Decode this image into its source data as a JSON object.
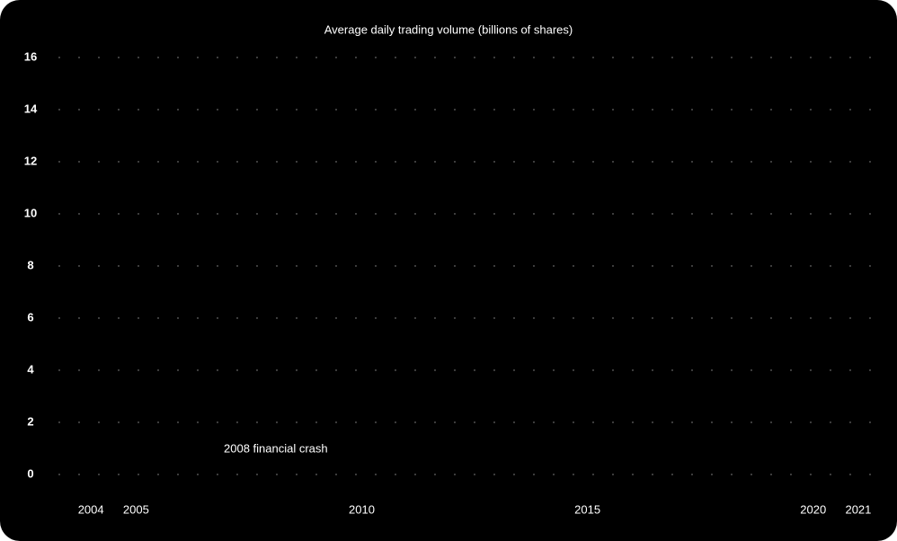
{
  "chart_data": {
    "type": "line",
    "title": "Average daily trading volume (billions of shares)",
    "annotation": "2008 financial crash",
    "xlim": [
      2003.3,
      2021.3
    ],
    "xticks": [
      2004,
      2005,
      2010,
      2015,
      2020,
      2021
    ],
    "ylim": [
      0,
      16
    ],
    "yticks": [
      0,
      2,
      4,
      6,
      8,
      10,
      12,
      14,
      16
    ],
    "grid": true,
    "series": []
  }
}
